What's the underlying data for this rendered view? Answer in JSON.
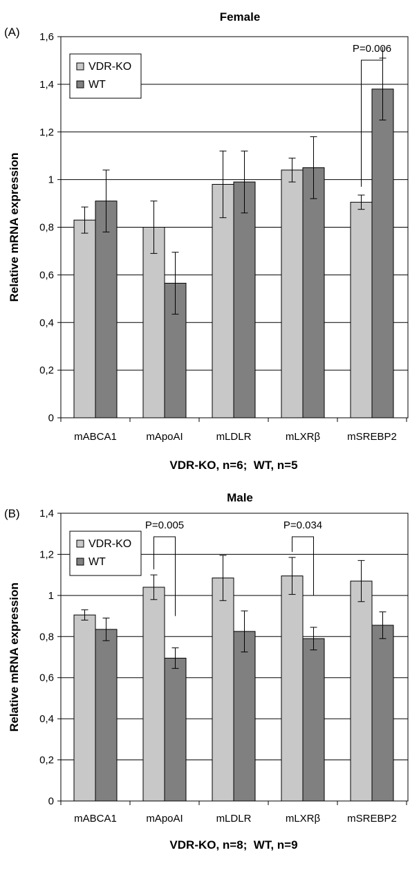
{
  "chart_data": [
    {
      "type": "bar",
      "panel_label": "(A)",
      "title": "Female",
      "ylabel": "Relative mRNA expression",
      "xlabel": "VDR-KO, n=6;  WT, n=5",
      "categories": [
        "mABCA1",
        "mApoAI",
        "mLDLR",
        "mLXRβ",
        "mSREBP2"
      ],
      "ylim": [
        0,
        1.6
      ],
      "yticks": [
        "0",
        "0,2",
        "0,4",
        "0,6",
        "0,8",
        "1",
        "1,2",
        "1,4",
        "1,6"
      ],
      "grid": true,
      "legend_position": "top-left",
      "series": [
        {
          "name": "VDR-KO",
          "color": "#c8c8c8",
          "values": [
            0.83,
            0.8,
            0.98,
            1.04,
            0.905
          ],
          "errors": [
            0.055,
            0.11,
            0.14,
            0.05,
            0.03
          ]
        },
        {
          "name": "WT",
          "color": "#808080",
          "values": [
            0.91,
            0.565,
            0.99,
            1.05,
            1.38
          ],
          "errors": [
            0.13,
            0.13,
            0.13,
            0.13,
            0.13
          ]
        }
      ],
      "significance": [
        {
          "category": "mSREBP2",
          "label": "P=0.006",
          "from_series": 0,
          "to_series": 1
        }
      ]
    },
    {
      "type": "bar",
      "panel_label": "(B)",
      "title": "Male",
      "ylabel": "Relative mRNA expression",
      "xlabel": "VDR-KO, n=8;  WT, n=9",
      "categories": [
        "mABCA1",
        "mApoAI",
        "mLDLR",
        "mLXRβ",
        "mSREBP2"
      ],
      "ylim": [
        0,
        1.4
      ],
      "yticks": [
        "0",
        "0,2",
        "0,4",
        "0,6",
        "0,8",
        "1",
        "1,2",
        "1,4"
      ],
      "grid": true,
      "legend_position": "top-left",
      "series": [
        {
          "name": "VDR-KO",
          "color": "#c8c8c8",
          "values": [
            0.905,
            1.04,
            1.085,
            1.095,
            1.07
          ],
          "errors": [
            0.025,
            0.06,
            0.11,
            0.09,
            0.1
          ]
        },
        {
          "name": "WT",
          "color": "#808080",
          "values": [
            0.835,
            0.695,
            0.825,
            0.79,
            0.855
          ],
          "errors": [
            0.055,
            0.05,
            0.1,
            0.055,
            0.065
          ]
        }
      ],
      "significance": [
        {
          "category": "mApoAI",
          "label": "P=0.005",
          "from_series": 0,
          "to_series": 1
        },
        {
          "category": "mLXRβ",
          "label": "P=0.034",
          "from_series": 0,
          "to_series": 1
        }
      ]
    }
  ]
}
